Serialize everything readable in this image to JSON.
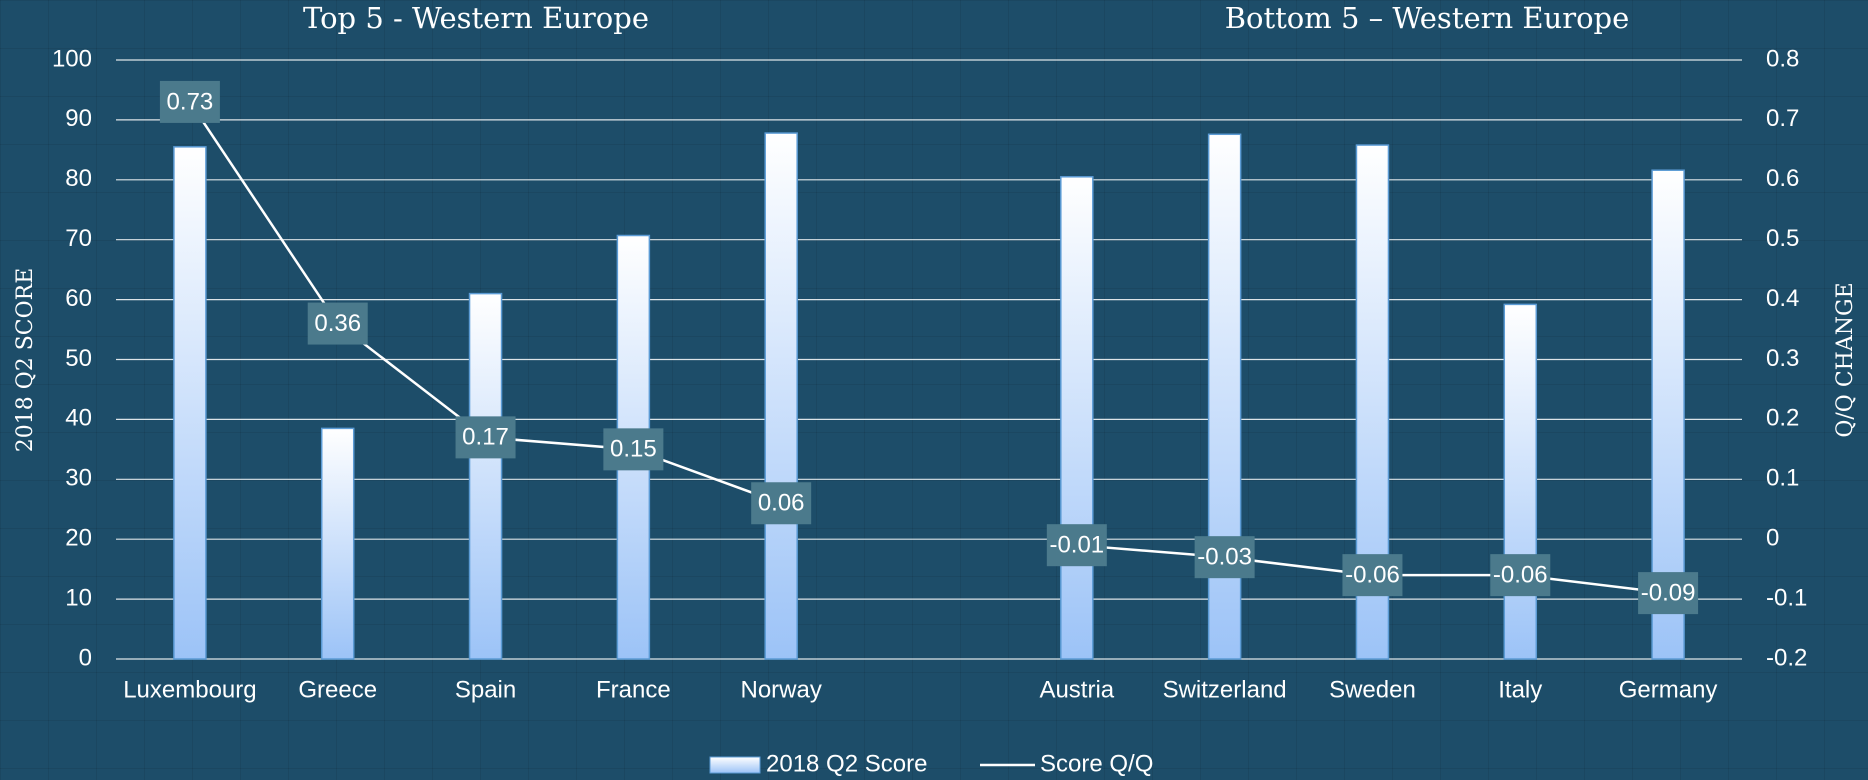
{
  "chart_data": {
    "type": "bar",
    "annotations": [
      "Top 5 - Western Europe",
      "Bottom 5 – Western Europe"
    ],
    "ylabel": "2018 Q2 SCORE",
    "y2label": "Q/Q CHANGE",
    "categories": [
      "Luxembourg",
      "Greece",
      "Spain",
      "France",
      "Norway",
      null,
      "Austria",
      "Switzerland",
      "Sweden",
      "Italy",
      "Germany"
    ],
    "series": [
      {
        "name": "2018 Q2 Score",
        "type": "bar",
        "color": "#9cc3f7",
        "values": [
          85.5,
          38.5,
          61,
          70.7,
          87.8,
          null,
          80.5,
          87.6,
          85.8,
          59.2,
          81.6
        ]
      },
      {
        "name": "Score Q/Q",
        "type": "line",
        "axis": "y2",
        "color": "#ffffff",
        "values": [
          0.73,
          0.36,
          0.17,
          0.15,
          0.06,
          null,
          -0.01,
          -0.03,
          -0.06,
          -0.06,
          -0.09
        ]
      }
    ],
    "ylim": [
      0,
      100
    ],
    "yticks": [
      0,
      10,
      20,
      30,
      40,
      50,
      60,
      70,
      80,
      90,
      100
    ],
    "y2lim": [
      -0.2,
      0.8
    ],
    "y2ticks": [
      -0.2,
      -0.1,
      0,
      0.1,
      0.2,
      0.3,
      0.4,
      0.5,
      0.6,
      0.7,
      0.8
    ],
    "grid": true,
    "legend": "bottom"
  }
}
